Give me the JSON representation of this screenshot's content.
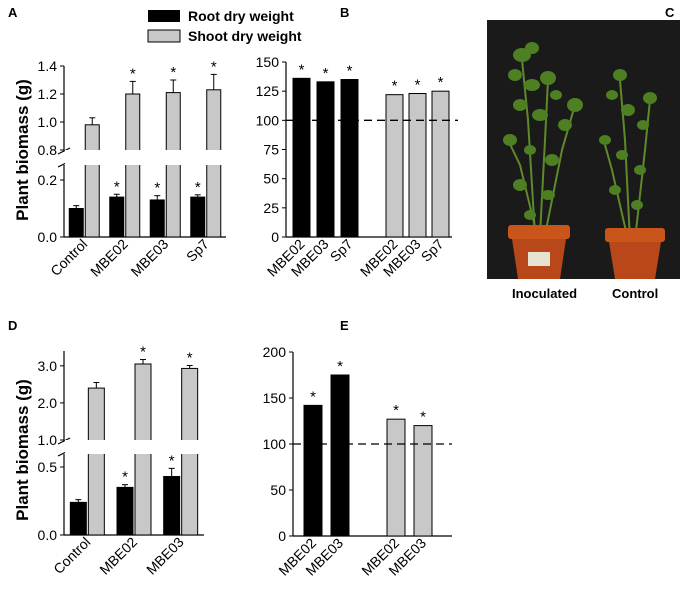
{
  "legend": {
    "root_label": "Root dry weight",
    "shoot_label": "Shoot dry weight"
  },
  "colors": {
    "root": "#000000",
    "shoot": "#c8c8c8"
  },
  "photo": {
    "left_label": "Inoculated",
    "right_label": "Control"
  },
  "chart_data": [
    {
      "panel": "A",
      "type": "bar",
      "ylabel": "Plant biomass (g)",
      "categories": [
        "Control",
        "MBE02",
        "MBE03",
        "Sp7"
      ],
      "axis_break": {
        "lower": [
          0.0,
          0.2
        ],
        "upper": [
          0.8,
          1.4
        ]
      },
      "yticks_lower": [
        "0.0",
        "0.2"
      ],
      "yticks_upper": [
        "0.8",
        "1.0",
        "1.2",
        "1.4"
      ],
      "series": [
        {
          "name": "Root dry weight",
          "values": [
            0.1,
            0.14,
            0.13,
            0.14
          ],
          "errors": [
            0.01,
            0.01,
            0.015,
            0.008
          ],
          "sig": [
            "",
            "*",
            "*",
            "*"
          ]
        },
        {
          "name": "Shoot dry weight",
          "values": [
            0.98,
            1.2,
            1.21,
            1.23
          ],
          "errors": [
            0.05,
            0.09,
            0.09,
            0.11
          ],
          "sig": [
            "",
            "*",
            "*",
            "*"
          ]
        }
      ]
    },
    {
      "panel": "B",
      "type": "bar",
      "ylim": [
        0,
        150
      ],
      "yticks": [
        "0",
        "25",
        "50",
        "75",
        "100",
        "125",
        "150"
      ],
      "reference_line": 100,
      "groups": [
        {
          "series": "Root dry weight",
          "categories": [
            "MBE02",
            "MBE03",
            "Sp7"
          ],
          "values": [
            136,
            133,
            135
          ],
          "sig": [
            "*",
            "*",
            "*"
          ]
        },
        {
          "series": "Shoot dry weight",
          "categories": [
            "MBE02",
            "MBE03",
            "Sp7"
          ],
          "values": [
            122,
            123,
            125
          ],
          "sig": [
            "*",
            "*",
            "*"
          ]
        }
      ]
    },
    {
      "panel": "D",
      "type": "bar",
      "ylabel": "Plant biomass (g)",
      "categories": [
        "Control",
        "MBE02",
        "MBE03"
      ],
      "axis_break": {
        "lower": [
          0.0,
          0.5
        ],
        "upper": [
          1.0,
          3.4
        ]
      },
      "yticks_lower": [
        "0.0",
        "0.5"
      ],
      "yticks_upper": [
        "1.0",
        "2.0",
        "3.0"
      ],
      "series": [
        {
          "name": "Root dry weight",
          "values": [
            0.24,
            0.35,
            0.43
          ],
          "errors": [
            0.02,
            0.02,
            0.06
          ],
          "sig": [
            "",
            "*",
            "*"
          ]
        },
        {
          "name": "Shoot dry weight",
          "values": [
            2.4,
            3.05,
            2.93
          ],
          "errors": [
            0.15,
            0.12,
            0.08
          ],
          "sig": [
            "",
            "*",
            "*"
          ]
        }
      ]
    },
    {
      "panel": "E",
      "type": "bar",
      "ylim": [
        0,
        200
      ],
      "yticks": [
        "0",
        "50",
        "100",
        "150",
        "200"
      ],
      "reference_line": 100,
      "groups": [
        {
          "series": "Root dry weight",
          "categories": [
            "MBE02",
            "MBE03"
          ],
          "values": [
            142,
            175
          ],
          "sig": [
            "*",
            "*"
          ]
        },
        {
          "series": "Shoot dry weight",
          "categories": [
            "MBE02",
            "MBE03"
          ],
          "values": [
            127,
            120
          ],
          "sig": [
            "*",
            "*"
          ]
        }
      ]
    }
  ]
}
